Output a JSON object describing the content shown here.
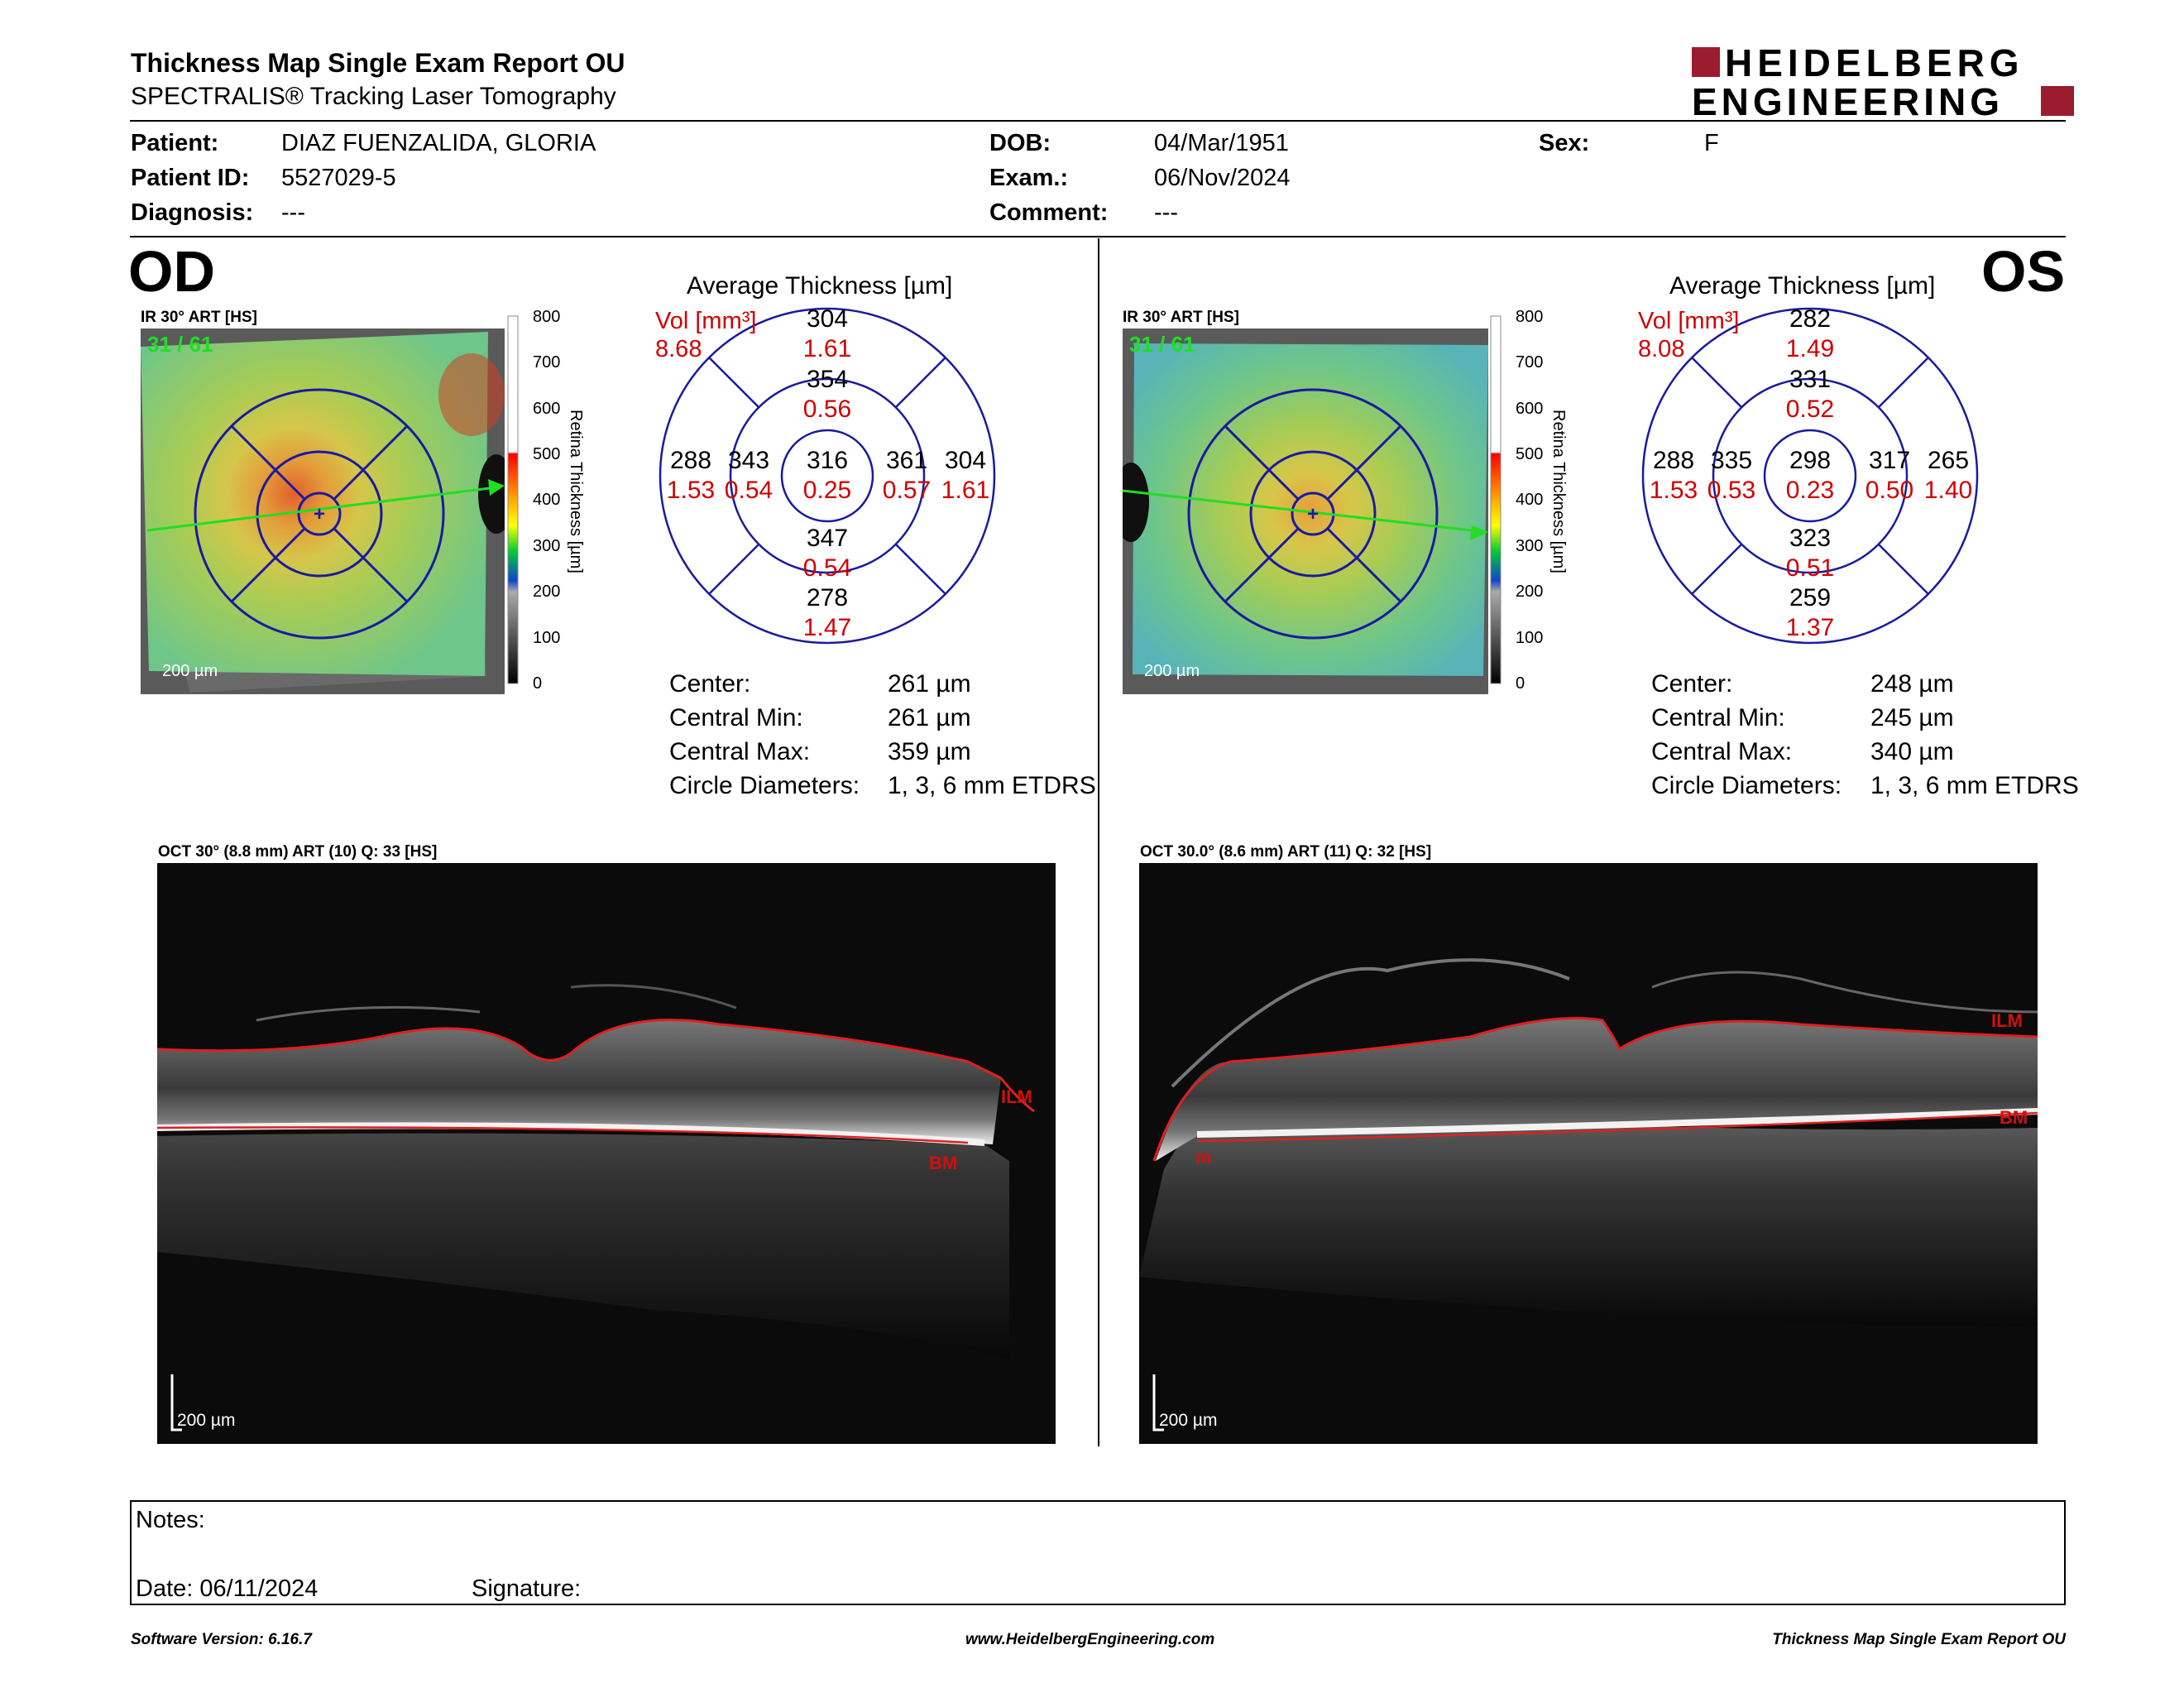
{
  "header": {
    "title": "Thickness Map Single Exam Report OU",
    "subtitle": "SPECTRALIS® Tracking Laser Tomography",
    "logo_line1": "HEIDELBERG",
    "logo_line2": "ENGINEERING"
  },
  "patient": {
    "patient_label": "Patient:",
    "patient_value": "DIAZ FUENZALIDA, GLORIA",
    "id_label": "Patient ID:",
    "id_value": "5527029-5",
    "diagnosis_label": "Diagnosis:",
    "diagnosis_value": "---",
    "dob_label": "DOB:",
    "dob_value": "04/Mar/1951",
    "exam_label": "Exam.:",
    "exam_value": "06/Nov/2024",
    "comment_label": "Comment:",
    "comment_value": "---",
    "sex_label": "Sex:",
    "sex_value": "F"
  },
  "od": {
    "eye_label": "OD",
    "ir_caption": "IR 30° ART [HS]",
    "ir_overlay": "31 / 61",
    "scale_label": "200 µm",
    "avg_title": "Average Thickness [µm]",
    "vol_label": "Vol [mm³]",
    "vol_total": "8.68",
    "sectors": {
      "outer_sup": {
        "t": "304",
        "v": "1.61"
      },
      "inner_sup": {
        "t": "354",
        "v": "0.56"
      },
      "outer_temp": {
        "t": "288",
        "v": "1.53"
      },
      "inner_temp": {
        "t": "343",
        "v": "0.54"
      },
      "center": {
        "t": "316",
        "v": "0.25"
      },
      "inner_nasal": {
        "t": "361",
        "v": "0.57"
      },
      "outer_nasal": {
        "t": "304",
        "v": "1.61"
      },
      "inner_inf": {
        "t": "347",
        "v": "0.54"
      },
      "outer_inf": {
        "t": "278",
        "v": "1.47"
      }
    },
    "stats": {
      "center_label": "Center:",
      "center_value": "261 µm",
      "cmin_label": "Central Min:",
      "cmin_value": "261 µm",
      "cmax_label": "Central Max:",
      "cmax_value": "359 µm",
      "diam_label": "Circle Diameters:",
      "diam_value": "1, 3, 6 mm ETDRS"
    },
    "oct_caption": "OCT 30° (8.8 mm) ART (10) Q: 33 [HS]",
    "oct_ilm": "ILM",
    "oct_bm": "BM",
    "oct_scale": "200 µm"
  },
  "os": {
    "eye_label": "OS",
    "ir_caption": "IR 30° ART [HS]",
    "ir_overlay": "31 / 61",
    "scale_label": "200 µm",
    "avg_title": "Average Thickness [µm]",
    "vol_label": "Vol [mm³]",
    "vol_total": "8.08",
    "sectors": {
      "outer_sup": {
        "t": "282",
        "v": "1.49"
      },
      "inner_sup": {
        "t": "331",
        "v": "0.52"
      },
      "outer_temp": {
        "t": "288",
        "v": "1.53"
      },
      "inner_temp": {
        "t": "335",
        "v": "0.53"
      },
      "center": {
        "t": "298",
        "v": "0.23"
      },
      "inner_nasal": {
        "t": "317",
        "v": "0.50"
      },
      "outer_nasal": {
        "t": "265",
        "v": "1.40"
      },
      "inner_inf": {
        "t": "323",
        "v": "0.51"
      },
      "outer_inf": {
        "t": "259",
        "v": "1.37"
      }
    },
    "stats": {
      "center_label": "Center:",
      "center_value": "248 µm",
      "cmin_label": "Central Min:",
      "cmin_value": "245 µm",
      "cmax_label": "Central Max:",
      "cmax_value": "340 µm",
      "diam_label": "Circle Diameters:",
      "diam_value": "1, 3, 6 mm ETDRS"
    },
    "oct_caption": "OCT 30.0° (8.6 mm) ART (11) Q: 32 [HS]",
    "oct_ilm": "ILM",
    "oct_bm": "BM",
    "oct_m": "m",
    "oct_scale": "200 µm"
  },
  "colorbar": {
    "ticks": [
      "800",
      "700",
      "600",
      "500",
      "400",
      "300",
      "200",
      "100",
      "0"
    ],
    "title": "Retina Thickness [µm]"
  },
  "notes": {
    "notes_label": "Notes:",
    "date_label": "Date: 06/11/2024",
    "signature_label": "Signature:"
  },
  "footer": {
    "left": "Software Version: 6.16.7",
    "center": "www.HeidelbergEngineering.com",
    "right": "Thickness Map Single Exam Report OU"
  },
  "colors": {
    "vol_red": "#d00000",
    "grid_blue": "#1a1aa0",
    "logo_red": "#9b1c2e",
    "green_arrow": "#22dd22"
  }
}
